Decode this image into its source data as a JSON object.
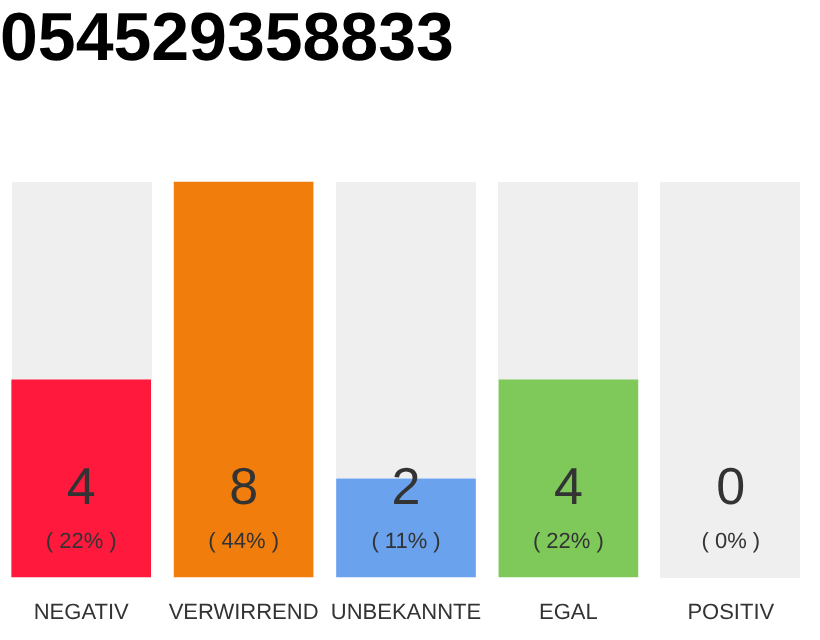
{
  "chart_data": {
    "type": "bar",
    "title": "054529358833",
    "categories": [
      "NEGATIV",
      "VERWIRREND",
      "UNBEKANNTE",
      "EGAL",
      "POSITIV"
    ],
    "values": [
      4,
      8,
      2,
      4,
      0
    ],
    "colors": [
      "#ff1a3d",
      "#f07d0c",
      "#6aa2ee",
      "#7ec95a",
      "#cccccc"
    ],
    "value_labels": [
      "4",
      "8",
      "2",
      "4",
      "0"
    ],
    "annotations": [
      "( 22% )",
      "( 44% )",
      "( 11% )",
      "( 22% )",
      "( 0% )"
    ],
    "grid": false,
    "legend": false
  }
}
